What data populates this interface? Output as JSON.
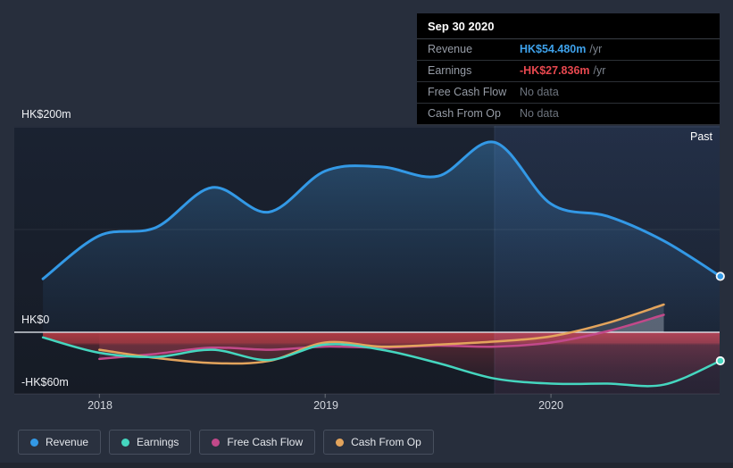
{
  "past_label": "Past",
  "tooltip": {
    "date": "Sep 30 2020",
    "rows": [
      {
        "label": "Revenue",
        "value": "HK$54.480m",
        "suffix": "/yr"
      },
      {
        "label": "Earnings",
        "value": "-HK$27.836m",
        "suffix": "/yr"
      },
      {
        "label": "Free Cash Flow",
        "value": "No data",
        "suffix": ""
      },
      {
        "label": "Cash From Op",
        "value": "No data",
        "suffix": ""
      }
    ]
  },
  "legend": {
    "items": [
      {
        "label": "Revenue",
        "color": "#3399e6"
      },
      {
        "label": "Earnings",
        "color": "#45d6bf"
      },
      {
        "label": "Free Cash Flow",
        "color": "#c2498a"
      },
      {
        "label": "Cash From Op",
        "color": "#e3a45c"
      }
    ]
  },
  "chart_data": {
    "type": "line",
    "title": "",
    "xlabel": "",
    "ylabel": "HK$ (millions)",
    "x": [
      2017.75,
      2018.0,
      2018.25,
      2018.5,
      2018.75,
      2019.0,
      2019.25,
      2019.5,
      2019.75,
      2020.0,
      2020.25,
      2020.5,
      2020.75
    ],
    "x_point_labels": [
      "Sep 2017",
      "Dec 2017",
      "Mar 2018",
      "Jun 2018",
      "Sep 2018",
      "Dec 2018",
      "Mar 2019",
      "Jun 2019",
      "Sep 2019",
      "Dec 2019",
      "Mar 2020",
      "Jun 2020",
      "Sep 2020"
    ],
    "series": [
      {
        "name": "Revenue",
        "color": "#3399e6",
        "unit": "HK$m",
        "end_dot": true,
        "values": [
          52,
          94,
          102,
          141,
          117,
          157,
          161,
          152,
          185,
          125,
          113,
          89,
          54.48
        ]
      },
      {
        "name": "Earnings",
        "color": "#45d6bf",
        "unit": "HK$m",
        "end_dot": true,
        "values": [
          -5,
          -20,
          -24,
          -17,
          -27,
          -12,
          -17,
          -30,
          -45,
          -50,
          -50,
          -51,
          -27.84
        ]
      },
      {
        "name": "Free Cash Flow",
        "color": "#c2498a",
        "unit": "HK$m",
        "end_dot": false,
        "values": [
          null,
          -26,
          -21,
          -15,
          -17,
          -14,
          -15,
          -13,
          -14,
          -10,
          1,
          17,
          null
        ]
      },
      {
        "name": "Cash From Op",
        "color": "#e3a45c",
        "unit": "HK$m",
        "end_dot": false,
        "values": [
          null,
          -17,
          -25,
          -30,
          -28,
          -10,
          -14,
          -12,
          -9,
          -4,
          9,
          27,
          null
        ]
      }
    ],
    "y_tick_labels": [
      "HK$200m",
      "HK$0",
      "-HK$60m"
    ],
    "y_gridlines_m": [
      200,
      100,
      0,
      -60
    ],
    "x_ticks": [
      "2018",
      "2019",
      "2020"
    ],
    "x_tick_years": [
      2018,
      2019,
      2020
    ],
    "axis": {
      "x_min": 2017.623,
      "x_max": 2020.747,
      "y_min": -60,
      "y_max": 200.9
    },
    "legend_position": "bottom-left",
    "grid": true,
    "past_region_start_x": 2019.75,
    "tooltip_date_x": 2020.75
  }
}
